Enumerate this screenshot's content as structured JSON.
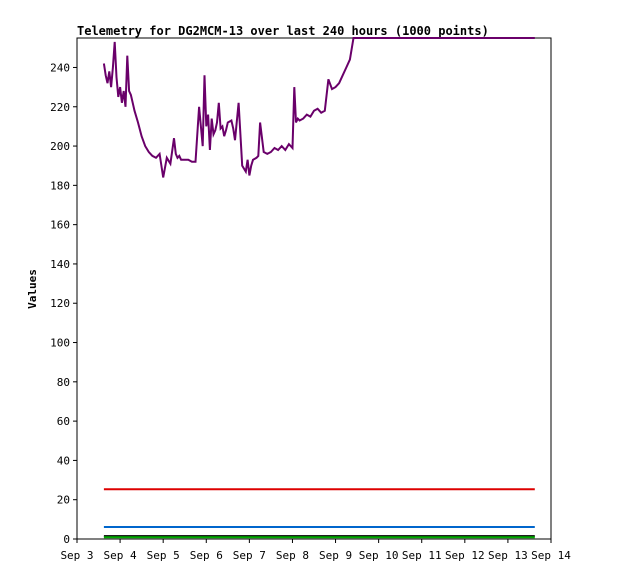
{
  "chart_data": {
    "type": "line",
    "title": "Telemetry for DG2MCM-13 over last 240 hours (1000 points)",
    "xlabel": "",
    "ylabel": "Values",
    "xlim": [
      "2023-09-03T00:00",
      "2023-09-14T00:00"
    ],
    "ylim": [
      0,
      255
    ],
    "x_tick_labels": [
      "Sep 3",
      "Sep 4",
      "Sep 5",
      "Sep 6",
      "Sep 7",
      "Sep 8",
      "Sep 9",
      "Sep 10",
      "Sep 11",
      "Sep 12",
      "Sep 13",
      "Sep 14"
    ],
    "y_ticks": [
      0,
      20,
      40,
      60,
      80,
      100,
      120,
      140,
      160,
      180,
      200,
      220,
      240
    ],
    "grid": false,
    "legend": "none",
    "series": [
      {
        "color": "#6a006a",
        "x": [
          "2023-09-03T15:00",
          "2023-09-03T16:00",
          "2023-09-03T17:00",
          "2023-09-03T18:00",
          "2023-09-03T19:00",
          "2023-09-03T20:00",
          "2023-09-03T21:00",
          "2023-09-03T22:00",
          "2023-09-03T23:00",
          "2023-09-04T00:00",
          "2023-09-04T01:00",
          "2023-09-04T02:00",
          "2023-09-04T03:00",
          "2023-09-04T04:00",
          "2023-09-04T05:00",
          "2023-09-04T06:00",
          "2023-09-04T07:00",
          "2023-09-04T08:00",
          "2023-09-04T10:00",
          "2023-09-04T12:00",
          "2023-09-04T14:00",
          "2023-09-04T16:00",
          "2023-09-04T18:00",
          "2023-09-04T20:00",
          "2023-09-04T22:00",
          "2023-09-05T00:00",
          "2023-09-05T02:00",
          "2023-09-05T04:00",
          "2023-09-05T06:00",
          "2023-09-05T07:00",
          "2023-09-05T08:00",
          "2023-09-05T09:00",
          "2023-09-05T10:00",
          "2023-09-05T12:00",
          "2023-09-05T14:00",
          "2023-09-05T16:00",
          "2023-09-05T18:00",
          "2023-09-05T20:00",
          "2023-09-05T22:00",
          "2023-09-05T23:00",
          "2023-09-06T00:00",
          "2023-09-06T01:00",
          "2023-09-06T02:00",
          "2023-09-06T03:00",
          "2023-09-06T04:00",
          "2023-09-06T05:00",
          "2023-09-06T06:00",
          "2023-09-06T07:00",
          "2023-09-06T08:00",
          "2023-09-06T09:00",
          "2023-09-06T10:00",
          "2023-09-06T11:00",
          "2023-09-06T12:00",
          "2023-09-06T14:00",
          "2023-09-06T15:00",
          "2023-09-06T16:00",
          "2023-09-06T18:00",
          "2023-09-06T20:00",
          "2023-09-06T22:00",
          "2023-09-06T23:00",
          "2023-09-07T00:00",
          "2023-09-07T01:00",
          "2023-09-07T02:00",
          "2023-09-07T04:00",
          "2023-09-07T05:00",
          "2023-09-07T06:00",
          "2023-09-07T08:00",
          "2023-09-07T10:00",
          "2023-09-07T12:00",
          "2023-09-07T13:00",
          "2023-09-07T14:00",
          "2023-09-07T16:00",
          "2023-09-07T18:00",
          "2023-09-07T20:00",
          "2023-09-07T22:00",
          "2023-09-08T00:00",
          "2023-09-08T01:00",
          "2023-09-08T02:00",
          "2023-09-08T03:00",
          "2023-09-08T04:00",
          "2023-09-08T06:00",
          "2023-09-08T08:00",
          "2023-09-08T10:00",
          "2023-09-08T12:00",
          "2023-09-08T14:00",
          "2023-09-08T16:00",
          "2023-09-08T18:00",
          "2023-09-08T20:00",
          "2023-09-08T22:00",
          "2023-09-09T00:00",
          "2023-09-09T02:00",
          "2023-09-09T04:00",
          "2023-09-09T06:00",
          "2023-09-09T08:00",
          "2023-09-09T10:00",
          "2023-09-09T12:00",
          "2023-09-09T14:00",
          "2023-09-09T15:00",
          "2023-09-09T16:00",
          "2023-09-09T17:00",
          "2023-09-09T18:00",
          "2023-09-10T00:00",
          "2023-09-11T00:00",
          "2023-09-12T00:00",
          "2023-09-13T00:00",
          "2023-09-13T15:00"
        ],
        "values": [
          242,
          236,
          232,
          238,
          230,
          240,
          253,
          235,
          225,
          230,
          222,
          228,
          220,
          246,
          228,
          226,
          222,
          218,
          212,
          205,
          200,
          197,
          195,
          194,
          196,
          184,
          194,
          191,
          204,
          196,
          194,
          195,
          193,
          193,
          193,
          192,
          192,
          220,
          200,
          236,
          210,
          216,
          198,
          214,
          206,
          208,
          212,
          222,
          209,
          210,
          205,
          208,
          212,
          213,
          209,
          203,
          222,
          190,
          187,
          193,
          185,
          190,
          193,
          194,
          195,
          212,
          197,
          196,
          197,
          198,
          199,
          198,
          200,
          198,
          201,
          199,
          230,
          212,
          214,
          213,
          214,
          216,
          215,
          218,
          219,
          217,
          218,
          234,
          229,
          230,
          232,
          236,
          240,
          244,
          256,
          256,
          256,
          256,
          256,
          256,
          256,
          256,
          256,
          256,
          256,
          256
        ]
      },
      {
        "color": "#dd0000",
        "x": [
          "2023-09-03T15:00",
          "2023-09-13T15:00"
        ],
        "values": [
          25.3,
          25.3
        ]
      },
      {
        "color": "#0066cc",
        "x": [
          "2023-09-03T15:00",
          "2023-09-13T15:00"
        ],
        "values": [
          6.1,
          6.1
        ]
      },
      {
        "color": "#000000",
        "x": [
          "2023-09-03T15:00",
          "2023-09-13T15:00"
        ],
        "values": [
          1.5,
          1.5
        ]
      },
      {
        "color": "#00aa00",
        "x": [
          "2023-09-03T15:00",
          "2023-09-13T15:00"
        ],
        "values": [
          0.9,
          0.9
        ]
      }
    ]
  }
}
